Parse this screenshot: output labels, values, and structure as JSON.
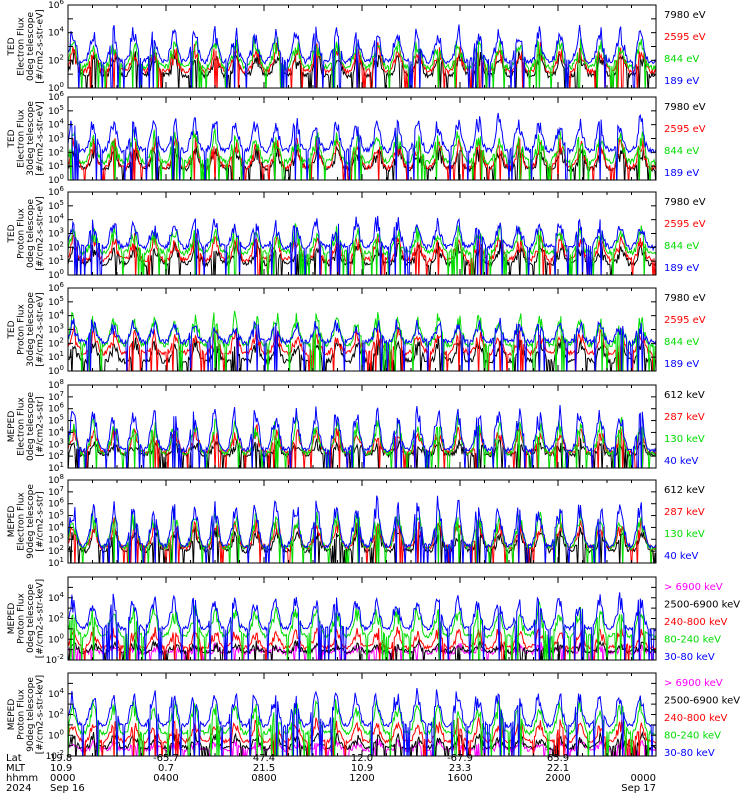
{
  "chart_data": {
    "type": "line",
    "x_axis": {
      "start": "2024-09-16 00:00",
      "end": "2024-09-17 00:00",
      "row_labels": [
        "Lat",
        "MLT",
        "hhmm",
        "2024"
      ],
      "columns": [
        {
          "lat": "19.8",
          "mlt": "10.9",
          "hhmm": "0000",
          "date": "Sep 16"
        },
        {
          "lat": "-65.7",
          "mlt": "0.7",
          "hhmm": "0400",
          "date": ""
        },
        {
          "lat": "47.4",
          "mlt": "21.5",
          "hhmm": "0800",
          "date": ""
        },
        {
          "lat": "12.0",
          "mlt": "10.9",
          "hhmm": "1200",
          "date": ""
        },
        {
          "lat": "-67.9",
          "mlt": "23.3",
          "hhmm": "1600",
          "date": ""
        },
        {
          "lat": "65.9",
          "mlt": "22.1",
          "hhmm": "2000",
          "date": ""
        },
        {
          "lat": "",
          "mlt": "",
          "hhmm": "0000",
          "date": "Sep 17"
        }
      ]
    },
    "panels": [
      {
        "ylabel_lines": [
          "TED",
          "Electron Flux",
          "0deg telescope",
          "[#/cm2-s-str-eV]"
        ],
        "ylim_exp": [
          0,
          6
        ],
        "tick_exps": [
          0,
          2,
          4,
          6
        ],
        "log": true,
        "series": [
          {
            "name": "7980 eV",
            "color": "#000000",
            "base": 0.9,
            "peak": 2.6
          },
          {
            "name": "2595 eV",
            "color": "#ff0000",
            "base": 1.2,
            "peak": 3.0
          },
          {
            "name": "844 eV",
            "color": "#00dd00",
            "base": 1.5,
            "peak": 3.6
          },
          {
            "name": "189 eV",
            "color": "#0000ff",
            "base": 1.9,
            "peak": 4.5
          }
        ]
      },
      {
        "ylabel_lines": [
          "TED",
          "Electron Flux",
          "30deg telescope",
          "[#/cm2-s-str-eV]"
        ],
        "ylim_exp": [
          0,
          6
        ],
        "tick_exps": [
          0,
          1,
          2,
          3,
          4,
          5,
          6
        ],
        "log": true,
        "series": [
          {
            "name": "7980 eV",
            "color": "#000000",
            "base": 0.8,
            "peak": 2.4
          },
          {
            "name": "2595 eV",
            "color": "#ff0000",
            "base": 0.9,
            "peak": 3.0
          },
          {
            "name": "844 eV",
            "color": "#00dd00",
            "base": 1.3,
            "peak": 3.5
          },
          {
            "name": "189 eV",
            "color": "#0000ff",
            "base": 2.1,
            "peak": 4.6
          }
        ]
      },
      {
        "ylabel_lines": [
          "TED",
          "Proton Flux",
          "0deg telescope",
          "[#/cm2-s-str-eV]"
        ],
        "ylim_exp": [
          0,
          6
        ],
        "tick_exps": [
          0,
          1,
          2,
          3,
          4,
          5,
          6
        ],
        "log": true,
        "series": [
          {
            "name": "7980 eV",
            "color": "#000000",
            "base": 0.8,
            "peak": 2.2
          },
          {
            "name": "2595 eV",
            "color": "#ff0000",
            "base": 1.1,
            "peak": 2.8
          },
          {
            "name": "844 eV",
            "color": "#00dd00",
            "base": 1.6,
            "peak": 3.4
          },
          {
            "name": "189 eV",
            "color": "#0000ff",
            "base": 2.0,
            "peak": 4.0
          }
        ]
      },
      {
        "ylabel_lines": [
          "TED",
          "Proton Flux",
          "30deg telescope",
          "[#/cm2-s-str-eV]"
        ],
        "ylim_exp": [
          0,
          6
        ],
        "tick_exps": [
          0,
          1,
          2,
          3,
          4,
          5,
          6
        ],
        "log": true,
        "series": [
          {
            "name": "7980 eV",
            "color": "#000000",
            "base": 0.7,
            "peak": 2.2
          },
          {
            "name": "2595 eV",
            "color": "#ff0000",
            "base": 1.3,
            "peak": 2.9
          },
          {
            "name": "844 eV",
            "color": "#00dd00",
            "base": 1.9,
            "peak": 4.1
          },
          {
            "name": "189 eV",
            "color": "#0000ff",
            "base": 2.1,
            "peak": 3.6
          }
        ]
      },
      {
        "ylabel_lines": [
          "MEPED",
          "Electron Flux",
          "0deg telescope",
          "[#/cm2-s-str]"
        ],
        "ylim_exp": [
          1,
          8
        ],
        "tick_exps": [
          1,
          2,
          3,
          4,
          5,
          6,
          7,
          8
        ],
        "log": true,
        "series": [
          {
            "name": "612 keV",
            "color": "#000000",
            "base": 2.1,
            "peak": 3.2
          },
          {
            "name": "287 keV",
            "color": "#ff0000",
            "base": 2.3,
            "peak": 4.4
          },
          {
            "name": "130 keV",
            "color": "#00dd00",
            "base": 2.2,
            "peak": 5.2
          },
          {
            "name": "40 keV",
            "color": "#0000ff",
            "base": 2.5,
            "peak": 6.2
          }
        ]
      },
      {
        "ylabel_lines": [
          "MEPED",
          "Electron Flux",
          "90deg telescope",
          "[#/cm2-s-str]"
        ],
        "ylim_exp": [
          1,
          8
        ],
        "tick_exps": [
          1,
          2,
          3,
          4,
          5,
          6,
          7,
          8
        ],
        "log": true,
        "series": [
          {
            "name": "612 keV",
            "color": "#000000",
            "base": 2.0,
            "peak": 4.0
          },
          {
            "name": "287 keV",
            "color": "#ff0000",
            "base": 2.3,
            "peak": 4.6
          },
          {
            "name": "130 keV",
            "color": "#00dd00",
            "base": 2.3,
            "peak": 5.4
          },
          {
            "name": "40 keV",
            "color": "#0000ff",
            "base": 2.4,
            "peak": 6.4
          }
        ]
      },
      {
        "ylabel_lines": [
          "MEPED",
          "Proton Flux",
          "0deg telescope",
          "[#/cm2-s-str-keV]"
        ],
        "ylim_exp": [
          -2,
          6
        ],
        "tick_exps": [
          -2,
          0,
          2,
          4
        ],
        "log": true,
        "series": [
          {
            "name": "> 6900 keV",
            "color": "#ff00ff",
            "base": -1.3,
            "peak": -0.6
          },
          {
            "name": "2500-6900 keV",
            "color": "#000000",
            "base": -1.2,
            "peak": -0.4
          },
          {
            "name": "240-800 keV",
            "color": "#ff0000",
            "base": -0.8,
            "peak": 1.0
          },
          {
            "name": "80-240 keV",
            "color": "#00dd00",
            "base": 0.3,
            "peak": 3.2
          },
          {
            "name": "30-80 keV",
            "color": "#0000ff",
            "base": 1.0,
            "peak": 4.2
          }
        ]
      },
      {
        "ylabel_lines": [
          "MEPED",
          "Proton Flux",
          "90deg telescope",
          "[#/cm2-s-str-keV]"
        ],
        "ylim_exp": [
          -2,
          6
        ],
        "tick_exps": [
          -2,
          0,
          2,
          4
        ],
        "log": true,
        "series": [
          {
            "name": "> 6900 keV",
            "color": "#ff00ff",
            "base": -1.4,
            "peak": -0.6
          },
          {
            "name": "2500-6900 keV",
            "color": "#000000",
            "base": -1.2,
            "peak": 0.0
          },
          {
            "name": "240-800 keV",
            "color": "#ff0000",
            "base": -0.6,
            "peak": 1.4
          },
          {
            "name": "80-240 keV",
            "color": "#00dd00",
            "base": 0.2,
            "peak": 3.4
          },
          {
            "name": "30-80 keV",
            "color": "#0000ff",
            "base": 0.9,
            "peak": 4.4
          }
        ]
      }
    ]
  }
}
